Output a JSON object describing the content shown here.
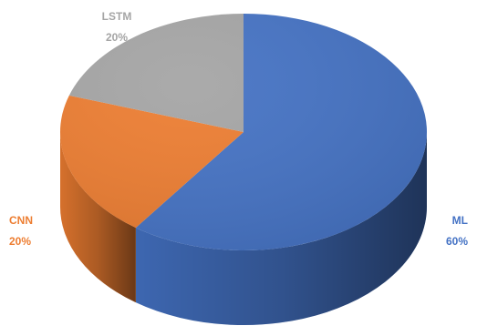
{
  "chart_data": {
    "type": "pie",
    "style": "3d",
    "title": "",
    "series": [
      {
        "labels": [
          "ML",
          "CNN",
          "LSTM"
        ],
        "values": [
          60,
          20,
          20
        ],
        "value_labels": [
          "60%",
          "20%",
          "20%"
        ],
        "colors": [
          "#4472C4",
          "#ED7D31",
          "#A5A5A5"
        ],
        "label_colors": [
          "#4472C4",
          "#ED7D31",
          "#A5A5A5"
        ]
      }
    ],
    "legend": "none"
  }
}
